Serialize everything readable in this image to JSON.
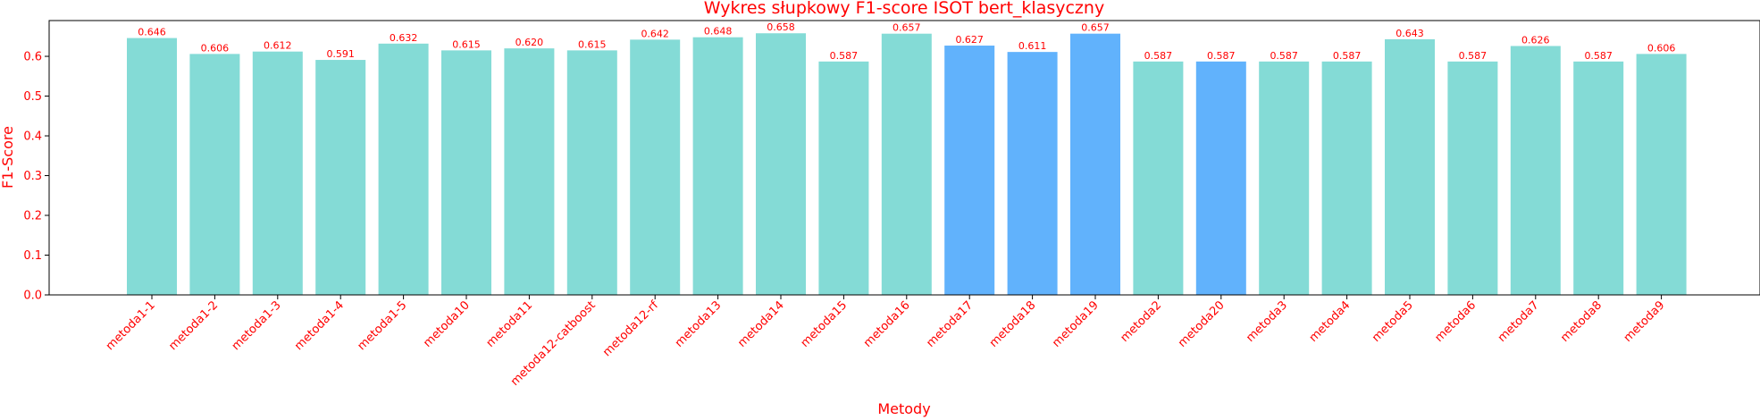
{
  "chart_data": {
    "type": "bar",
    "title": "Wykres słupkowy F1-score ISOT bert_klasyczny",
    "xlabel": "Metody",
    "ylabel": "F1-Score",
    "ylim": [
      0,
      0.69
    ],
    "yticks": [
      0.0,
      0.1,
      0.2,
      0.3,
      0.4,
      0.5,
      0.6
    ],
    "grid": false,
    "categories": [
      "metoda1-1",
      "metoda1-2",
      "metoda1-3",
      "metoda1-4",
      "metoda1-5",
      "metoda10",
      "metoda11",
      "metoda12-catboost",
      "metoda12-rf",
      "metoda13",
      "metoda14",
      "metoda15",
      "metoda16",
      "metoda17",
      "metoda18",
      "metoda19",
      "metoda2",
      "metoda20",
      "metoda3",
      "metoda4",
      "metoda5",
      "metoda6",
      "metoda7",
      "metoda8",
      "metoda9"
    ],
    "values": [
      0.646,
      0.606,
      0.612,
      0.591,
      0.632,
      0.615,
      0.62,
      0.615,
      0.642,
      0.648,
      0.658,
      0.587,
      0.657,
      0.627,
      0.611,
      0.657,
      0.587,
      0.587,
      0.587,
      0.587,
      0.643,
      0.587,
      0.626,
      0.587,
      0.606
    ],
    "value_labels": [
      "0.646",
      "0.606",
      "0.612",
      "0.591",
      "0.632",
      "0.615",
      "0.620",
      "0.615",
      "0.642",
      "0.648",
      "0.658",
      "0.587",
      "0.657",
      "0.627",
      "0.611",
      "0.657",
      "0.587",
      "0.587",
      "0.587",
      "0.587",
      "0.643",
      "0.587",
      "0.626",
      "0.587",
      "0.606"
    ],
    "highlighted": [
      "metoda17",
      "metoda18",
      "metoda19",
      "metoda20"
    ],
    "colors": {
      "bar": "#84dbd6",
      "bar_highlight": "#61b2fc",
      "text": "#ff0000",
      "axis": "#000000"
    }
  }
}
